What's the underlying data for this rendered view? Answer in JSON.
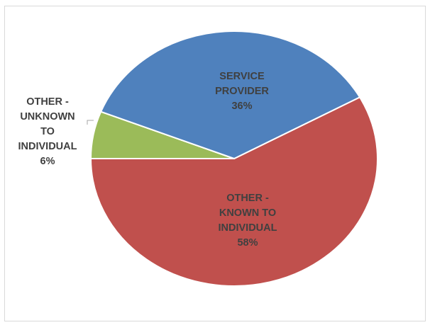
{
  "chart_data": {
    "type": "pie",
    "title": "",
    "slices": [
      {
        "label": "SERVICE PROVIDER",
        "label_lines": [
          "SERVICE",
          "PROVIDER"
        ],
        "value": 36,
        "value_label": "36%",
        "color": "#4f81bd"
      },
      {
        "label": "OTHER - KNOWN TO INDIVIDUAL",
        "label_lines": [
          "OTHER -",
          "KNOWN TO",
          "INDIVIDUAL"
        ],
        "value": 58,
        "value_label": "58%",
        "color": "#c0504d"
      },
      {
        "label": "OTHER - UNKNOWN TO INDIVIDUAL",
        "label_lines": [
          "OTHER -",
          "UNKNOWN",
          "TO",
          "INDIVIDUAL"
        ],
        "value": 6,
        "value_label": "6%",
        "color": "#9bbb59"
      }
    ],
    "legend": "none",
    "data_labels": "category and percentage"
  }
}
